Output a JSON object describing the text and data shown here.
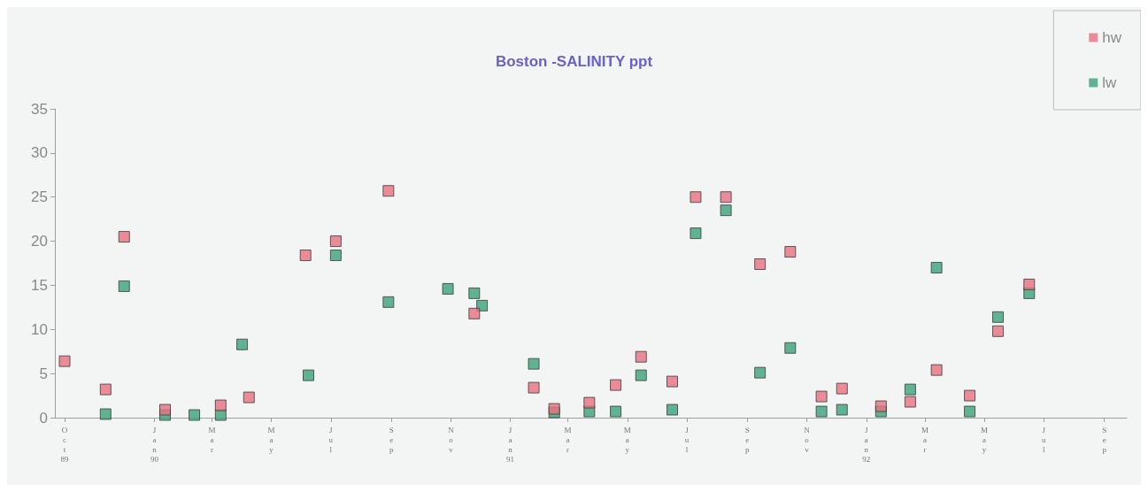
{
  "chart_data": {
    "type": "scatter",
    "title": "Boston -SALINITY ppt",
    "series": [
      {
        "name": "hw",
        "color": "#e8707f",
        "x": [
          "1989-10-15",
          "1989-11-26",
          "1989-12-15",
          "1990-01-26",
          "1990-03-24",
          "1990-04-22",
          "1990-06-19",
          "1990-07-20",
          "1990-09-12",
          "1990-12-09",
          "1991-02-08",
          "1991-03-01",
          "1991-04-06",
          "1991-05-03",
          "1991-05-29",
          "1991-06-30",
          "1991-07-24",
          "1991-08-24",
          "1991-09-28",
          "1991-10-29",
          "1991-11-30",
          "1991-12-21",
          "1992-01-30",
          "1992-02-29",
          "1992-03-27",
          "1992-04-30",
          "1992-05-29",
          "1992-06-30"
        ],
        "values": [
          6.4,
          3.2,
          20.5,
          0.9,
          1.4,
          2.3,
          18.4,
          20.0,
          25.7,
          11.8,
          3.4,
          1.0,
          1.7,
          3.7,
          6.9,
          4.1,
          25.0,
          25.0,
          17.4,
          18.8,
          2.4,
          3.3,
          1.3,
          1.8,
          5.4,
          2.5,
          9.8,
          15.1
        ]
      },
      {
        "name": "lw",
        "color": "#3aa37a",
        "x": [
          "1989-11-26",
          "1989-12-15",
          "1990-01-26",
          "1990-02-25",
          "1990-03-24",
          "1990-04-15",
          "1990-06-22",
          "1990-07-20",
          "1990-09-12",
          "1990-11-12",
          "1990-12-09",
          "1990-12-17",
          "1991-02-08",
          "1991-03-01",
          "1991-04-06",
          "1991-05-03",
          "1991-05-29",
          "1991-06-30",
          "1991-07-24",
          "1991-08-24",
          "1991-09-28",
          "1991-10-29",
          "1991-11-30",
          "1991-12-21",
          "1992-01-30",
          "1992-02-29",
          "1992-03-27",
          "1992-04-30",
          "1992-05-29",
          "1992-06-30"
        ],
        "values": [
          0.4,
          14.9,
          0.3,
          0.3,
          0.3,
          8.3,
          4.8,
          18.4,
          13.1,
          14.6,
          14.1,
          12.7,
          6.1,
          0.6,
          0.7,
          0.7,
          4.8,
          0.9,
          20.9,
          23.5,
          5.1,
          7.9,
          0.7,
          0.9,
          0.7,
          3.2,
          17.0,
          0.7,
          11.4,
          14.1
        ]
      }
    ],
    "xlim": [
      "1989-10-05",
      "1992-10-08"
    ],
    "xticks": [
      {
        "value": "1989-10-15",
        "label": "Oct 89"
      },
      {
        "value": "1990-01-15",
        "label": "Jan 90"
      },
      {
        "value": "1990-03-15",
        "label": "Mar"
      },
      {
        "value": "1990-05-15",
        "label": "May"
      },
      {
        "value": "1990-07-15",
        "label": "Jul"
      },
      {
        "value": "1990-09-15",
        "label": "Sep"
      },
      {
        "value": "1990-11-15",
        "label": "Nov"
      },
      {
        "value": "1991-01-15",
        "label": "Jan 91"
      },
      {
        "value": "1991-03-15",
        "label": "Mar"
      },
      {
        "value": "1991-05-15",
        "label": "May"
      },
      {
        "value": "1991-07-15",
        "label": "Jul"
      },
      {
        "value": "1991-09-15",
        "label": "Sep"
      },
      {
        "value": "1991-11-15",
        "label": "Nov"
      },
      {
        "value": "1992-01-15",
        "label": "Jan 92"
      },
      {
        "value": "1992-03-15",
        "label": "Mar"
      },
      {
        "value": "1992-05-15",
        "label": "May"
      },
      {
        "value": "1992-07-15",
        "label": "Jul"
      },
      {
        "value": "1992-09-15",
        "label": "Sep"
      }
    ],
    "ylim": [
      0,
      35
    ],
    "yticks": [
      0,
      5,
      10,
      15,
      20,
      25,
      30,
      35
    ],
    "marker": "square",
    "grid": false,
    "legend": "top right"
  }
}
